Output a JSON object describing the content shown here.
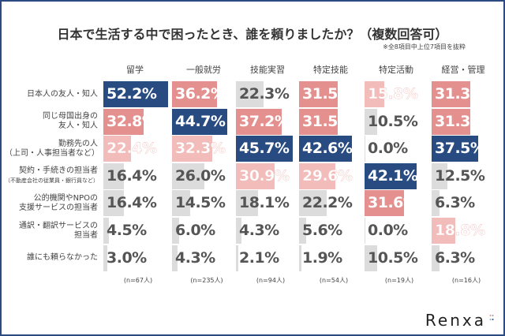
{
  "chart_data": {
    "type": "bar",
    "title": "日本で生活する中で困ったとき、誰を頼りましたか？（複数回答可）",
    "note": "※全8項目中上位7項目を抜粋",
    "columns": [
      "留学",
      "一般就労",
      "技能実習",
      "特定技能",
      "特定活動",
      "経営・管理"
    ],
    "n_labels": [
      "(n=67人)",
      "(n=235人)",
      "(n=94人)",
      "(n=54人)",
      "(n=19人)",
      "(n=16人)"
    ],
    "rows": [
      {
        "label": "日本人の友人・知人",
        "sub": ""
      },
      {
        "label": "同じ母国出身の\n友人・知人",
        "sub": ""
      },
      {
        "label": "勤務先の人\n（上司・人事担当者など）",
        "sub": ""
      },
      {
        "label": "契約・手続きの担当者",
        "sub": "（不動産会社の従業員・銀行員など）"
      },
      {
        "label": "公的機関やNPOの\n支援サービスの担当者",
        "sub": ""
      },
      {
        "label": "通訳・翻訳サービスの\n担当者",
        "sub": ""
      },
      {
        "label": "誰にも頼らなかった",
        "sub": ""
      }
    ],
    "values": [
      [
        52.2,
        36.2,
        22.3,
        31.5,
        15.8,
        31.3
      ],
      [
        32.8,
        44.7,
        37.2,
        31.5,
        10.5,
        31.3
      ],
      [
        22.4,
        32.3,
        45.7,
        42.6,
        0.0,
        37.5
      ],
      [
        16.4,
        26.0,
        30.9,
        29.6,
        42.1,
        12.5
      ],
      [
        16.4,
        14.5,
        18.1,
        22.2,
        31.6,
        6.3
      ],
      [
        4.5,
        6.0,
        4.3,
        5.6,
        0.0,
        18.8
      ],
      [
        3.0,
        4.3,
        2.1,
        1.9,
        10.5,
        6.3
      ]
    ],
    "unit": "%",
    "colors": {
      "rank1": "#284b82",
      "rank2": "#e3908f",
      "rank3": "#f2bcbb",
      "other": "#dcdcdc",
      "text_dark": "#555555"
    }
  },
  "logo": "Renxa"
}
